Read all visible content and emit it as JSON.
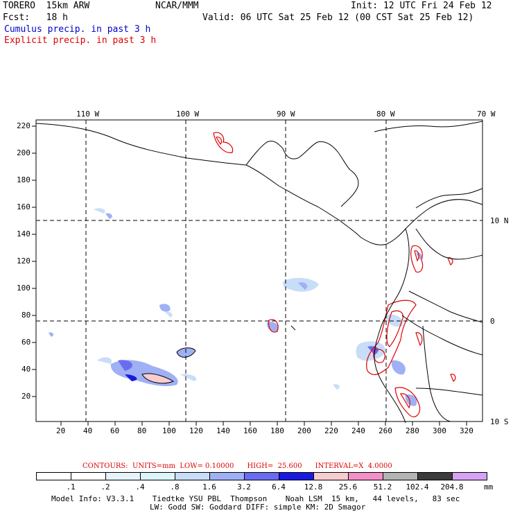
{
  "header": {
    "model": "TORERO  15km ARW",
    "org": "NCAR/MMM",
    "init": "Init: 12 UTC Fri 24 Feb 12",
    "fcst": "Fcst:   18 h",
    "valid": "Valid: 06 UTC Sat 25 Feb 12 (00 CST Sat 25 Feb 12)",
    "cumulus": "Cumulus precip. in past 3 h",
    "explicit": "Explicit precip. in past 3 h"
  },
  "axes": {
    "top_lon": [
      "110 W",
      "100 W",
      "90 W",
      "80 W",
      "70 W"
    ],
    "left_y": [
      "220",
      "200",
      "180",
      "160",
      "140",
      "120",
      "100",
      "80",
      "60",
      "40",
      "20"
    ],
    "bottom_x": [
      "20",
      "40",
      "60",
      "80",
      "100",
      "120",
      "140",
      "160",
      "180",
      "200",
      "220",
      "240",
      "260",
      "280",
      "300",
      "320"
    ],
    "right_lat": [
      "10 N",
      "0",
      "10 S"
    ]
  },
  "contours": {
    "label": "CONTOURS:  UNITS=mm  LOW= 0.10000      HIGH=  25.600      INTERVAL=X  4.0000"
  },
  "colorbar": {
    "unit": "mm",
    "thresholds": [
      ".1",
      ".2",
      ".4",
      ".8",
      "1.6",
      "3.2",
      "6.4",
      "12.8",
      "25.6",
      "51.2",
      "102.4",
      "204.8"
    ],
    "colors": [
      "#ffffff",
      "#ffffff",
      "#e6f3fa",
      "#ddf6fb",
      "#c8ddf7",
      "#9fb0f5",
      "#6a6cf0",
      "#1a1adf",
      "#f7cdd0",
      "#f390c8",
      "#b4b4b4",
      "#3c3c3c",
      "#d6a3f4"
    ]
  },
  "footer": {
    "line1": "Model Info: V3.3.1    Tiedtke YSU PBL  Thompson    Noah LSM  15 km,   44 levels,   83 sec",
    "line2": "LW: Godd SW: Goddard DIFF: simple KM: 2D Smagor"
  }
}
